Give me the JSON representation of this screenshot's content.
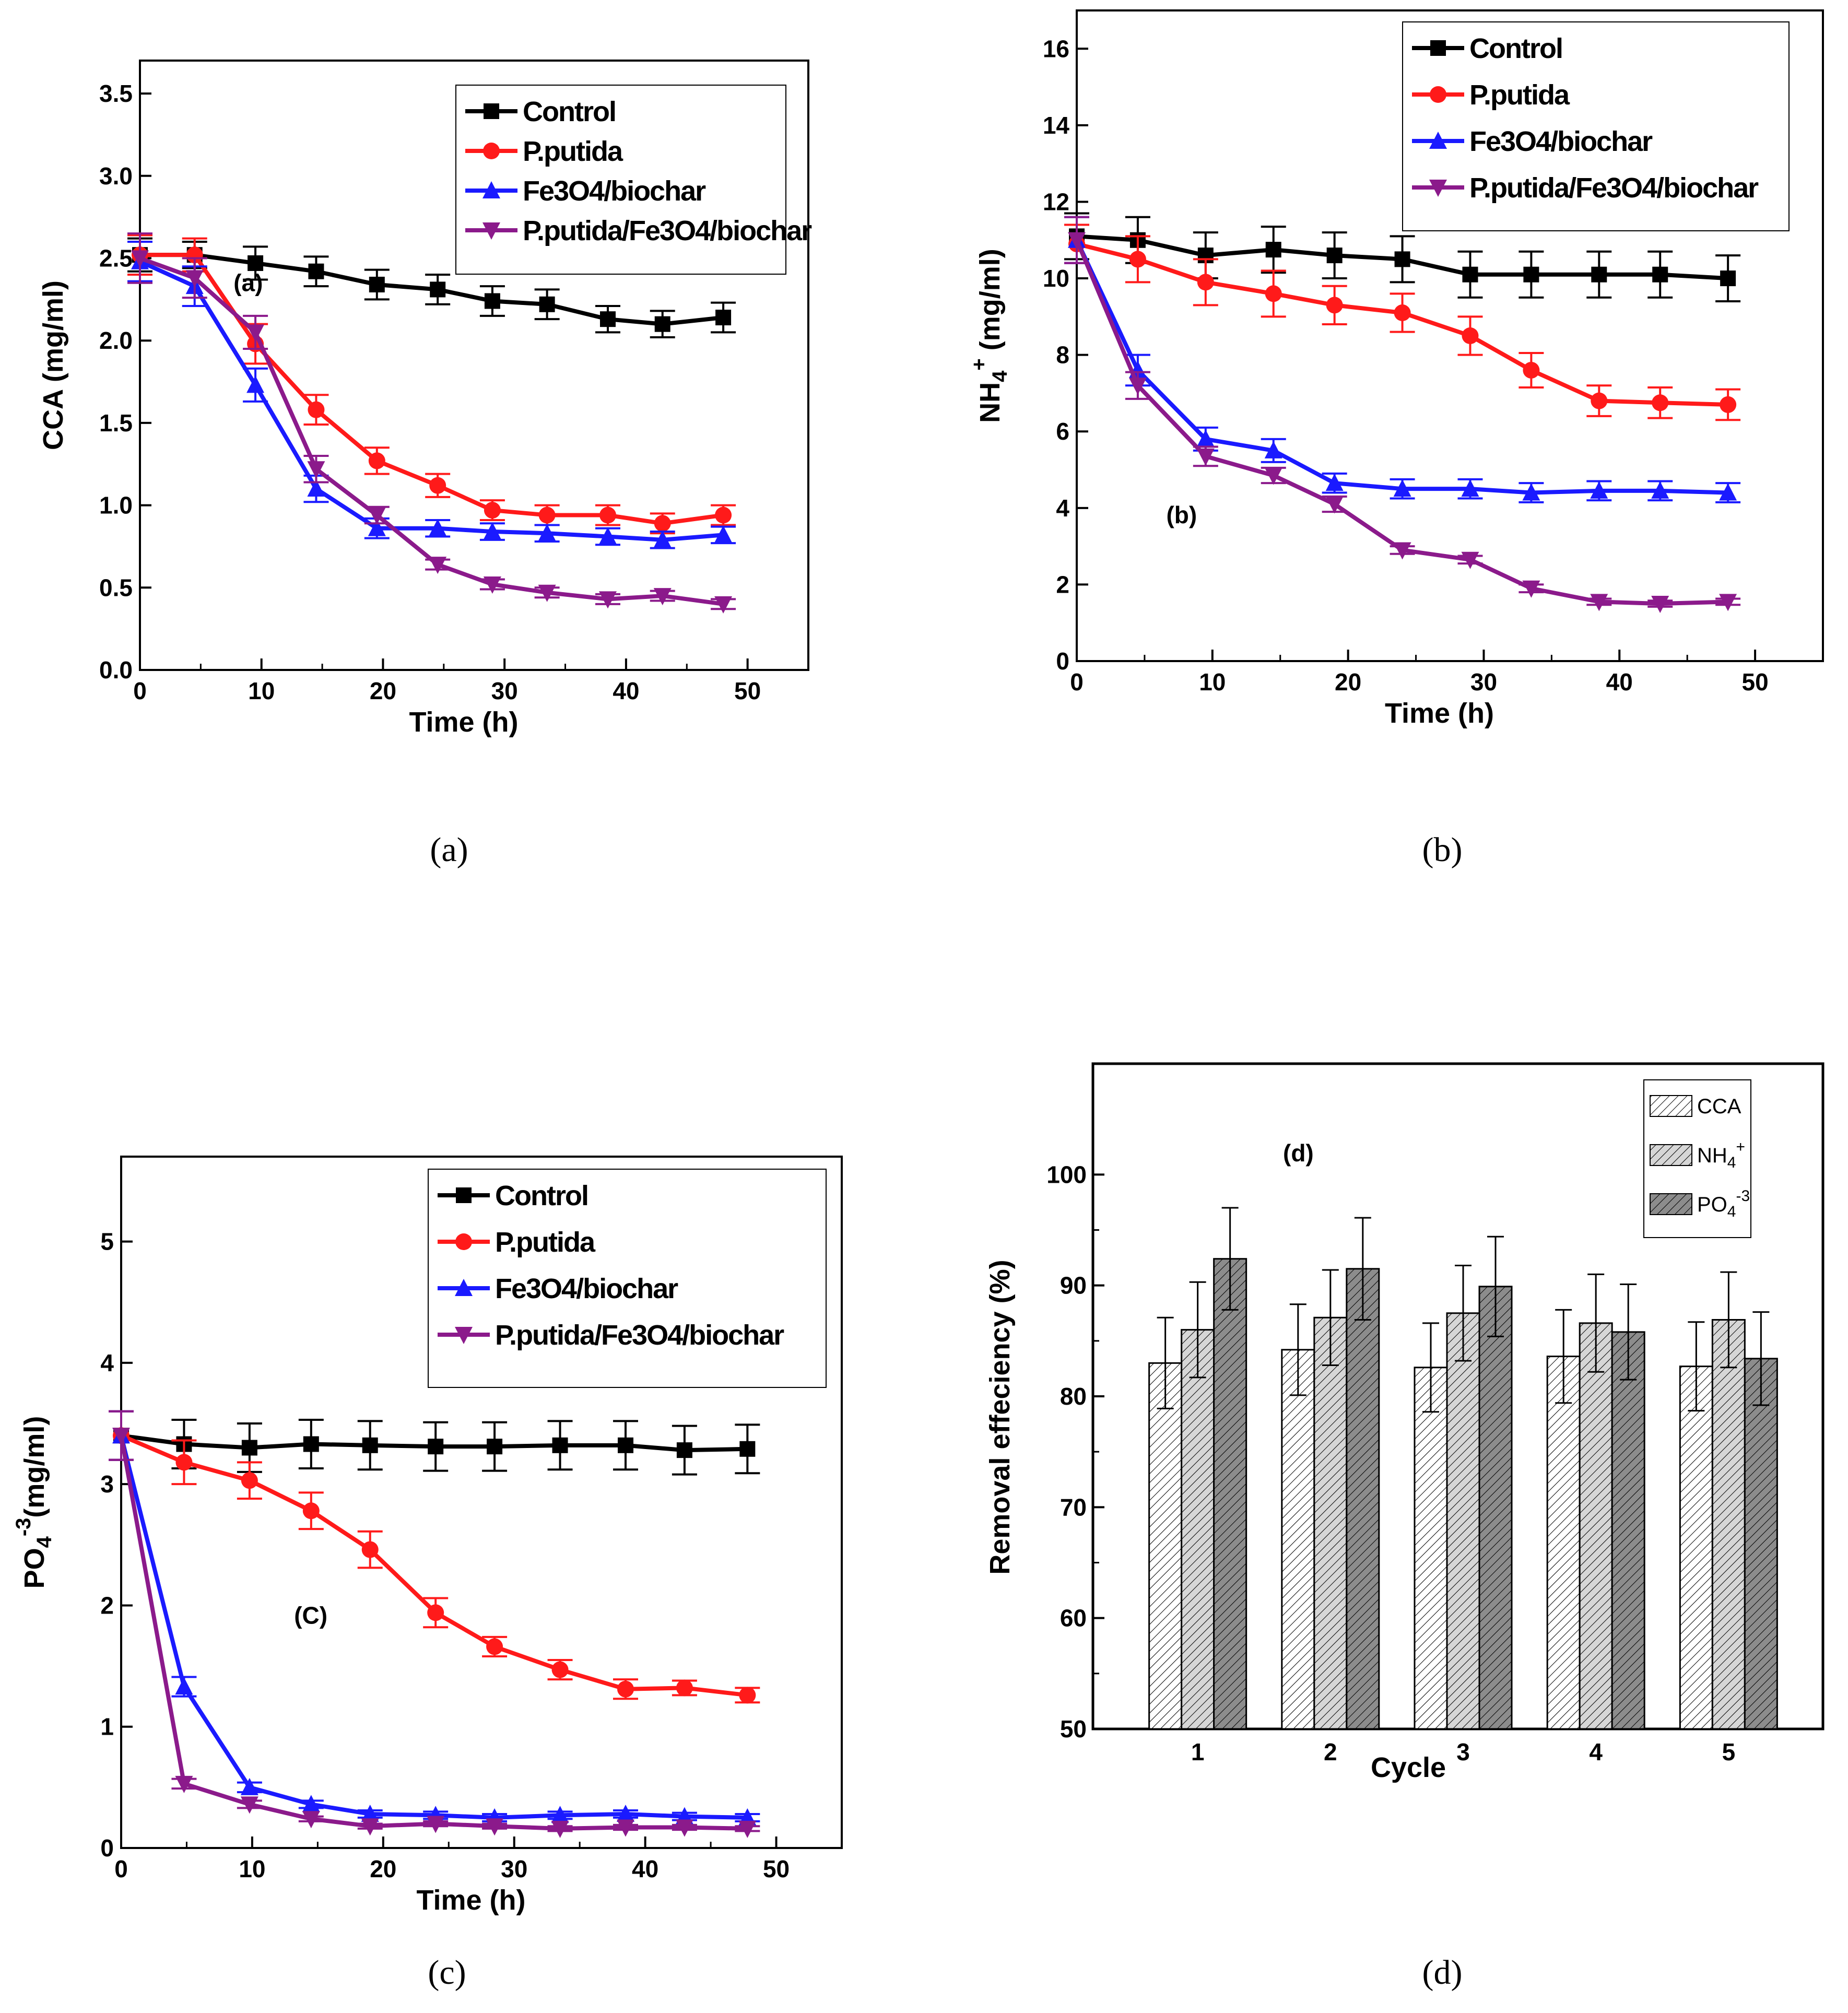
{
  "colors": {
    "Control": "#000000",
    "P.putida": "#ff1a1a",
    "Fe3O4/biochar": "#1a1aff",
    "P.putida/Fe3O4/biochar": "#8b1a8b",
    "CCA": "#ffffff",
    "NH4+": "#d6d6d6",
    "PO4-3": "#8c8c8c"
  },
  "chart_data": [
    {
      "id": "a",
      "type": "line",
      "caption": "(a)",
      "annotation": "(a)",
      "xlabel": "Time (h)",
      "ylabel": "CCA (mg/ml)",
      "xlim": [
        0,
        55
      ],
      "ylim": [
        0,
        3.7
      ],
      "xticks": [
        0,
        10,
        20,
        30,
        40,
        50
      ],
      "yticks": [
        0.0,
        0.5,
        1.0,
        1.5,
        2.0,
        2.5,
        3.0,
        3.5
      ],
      "ytick_labels": [
        "0.0",
        "0.5",
        "1.0",
        "1.5",
        "2.0",
        "2.5",
        "3.0",
        "3.5"
      ],
      "legend_position": "top-right",
      "x": [
        0,
        4.5,
        9.5,
        14.5,
        19.5,
        24.5,
        29,
        33.5,
        38.5,
        43,
        48
      ],
      "series": [
        {
          "name": "Control",
          "marker": "square",
          "values": [
            2.52,
            2.52,
            2.47,
            2.42,
            2.34,
            2.31,
            2.24,
            2.22,
            2.13,
            2.1,
            2.14
          ],
          "errors": [
            0.1,
            0.08,
            0.1,
            0.09,
            0.09,
            0.09,
            0.09,
            0.09,
            0.08,
            0.08,
            0.09
          ]
        },
        {
          "name": "P.putida",
          "marker": "circle",
          "values": [
            2.52,
            2.52,
            1.98,
            1.58,
            1.27,
            1.12,
            0.97,
            0.94,
            0.94,
            0.89,
            0.94
          ],
          "errors": [
            0.12,
            0.1,
            0.12,
            0.09,
            0.08,
            0.07,
            0.06,
            0.06,
            0.06,
            0.06,
            0.06
          ]
        },
        {
          "name": "Fe3O4/biochar",
          "marker": "triangle-up",
          "values": [
            2.48,
            2.33,
            1.73,
            1.1,
            0.86,
            0.86,
            0.84,
            0.83,
            0.81,
            0.79,
            0.82
          ],
          "errors": [
            0.12,
            0.12,
            0.1,
            0.08,
            0.06,
            0.05,
            0.05,
            0.05,
            0.05,
            0.05,
            0.05
          ]
        },
        {
          "name": "P.putida/Fe3O4/biochar",
          "marker": "triangle-down",
          "values": [
            2.5,
            2.38,
            2.05,
            1.22,
            0.94,
            0.64,
            0.52,
            0.47,
            0.43,
            0.45,
            0.4
          ],
          "errors": [
            0.15,
            0.12,
            0.1,
            0.08,
            0.05,
            0.03,
            0.03,
            0.03,
            0.03,
            0.03,
            0.03
          ]
        }
      ]
    },
    {
      "id": "b",
      "type": "line",
      "caption": "(b)",
      "annotation": "(b)",
      "xlabel": "Time (h)",
      "ylabel_main": "NH",
      "ylabel_sub": "4",
      "ylabel_sup": "+",
      "ylabel_rest": " (mg/ml)",
      "xlim": [
        0,
        55
      ],
      "ylim": [
        0,
        17
      ],
      "xticks": [
        0,
        10,
        20,
        30,
        40,
        50
      ],
      "yticks": [
        0,
        2,
        4,
        6,
        8,
        10,
        12,
        14,
        16
      ],
      "ytick_labels": [
        "0",
        "2",
        "4",
        "6",
        "8",
        "10",
        "12",
        "14",
        "16"
      ],
      "legend_position": "top-right",
      "x": [
        0,
        4.5,
        9.5,
        14.5,
        19,
        24,
        29,
        33.5,
        38.5,
        43,
        48
      ],
      "series": [
        {
          "name": "Control",
          "marker": "square",
          "values": [
            11.1,
            11.0,
            10.6,
            10.75,
            10.6,
            10.5,
            10.1,
            10.1,
            10.1,
            10.1,
            10.0
          ],
          "errors": [
            0.6,
            0.6,
            0.6,
            0.6,
            0.6,
            0.6,
            0.6,
            0.6,
            0.6,
            0.6,
            0.6
          ]
        },
        {
          "name": "P.putida",
          "marker": "circle",
          "values": [
            10.9,
            10.5,
            9.9,
            9.6,
            9.3,
            9.1,
            8.5,
            7.6,
            6.8,
            6.75,
            6.7
          ],
          "errors": [
            0.5,
            0.6,
            0.6,
            0.6,
            0.5,
            0.5,
            0.5,
            0.45,
            0.4,
            0.4,
            0.4
          ]
        },
        {
          "name": "Fe3O4/biochar",
          "marker": "triangle-up",
          "values": [
            11.0,
            7.6,
            5.8,
            5.5,
            4.65,
            4.5,
            4.5,
            4.4,
            4.45,
            4.45,
            4.4
          ],
          "errors": [
            0.6,
            0.4,
            0.3,
            0.3,
            0.25,
            0.25,
            0.25,
            0.25,
            0.25,
            0.25,
            0.25
          ]
        },
        {
          "name": "P.putida/Fe3O4/biochar",
          "marker": "triangle-down",
          "values": [
            11.0,
            7.2,
            5.35,
            4.85,
            4.1,
            2.9,
            2.65,
            1.9,
            1.55,
            1.5,
            1.55
          ],
          "errors": [
            0.6,
            0.35,
            0.25,
            0.2,
            0.2,
            0.1,
            0.1,
            0.1,
            0.08,
            0.08,
            0.08
          ]
        }
      ]
    },
    {
      "id": "c",
      "type": "line",
      "caption": "(c)",
      "annotation": "(C)",
      "xlabel": "Time (h)",
      "ylabel_main": "PO",
      "ylabel_sub": "4",
      "ylabel_sup": "-3",
      "ylabel_rest": "(mg/ml)",
      "xlim": [
        0,
        55
      ],
      "ylim": [
        0,
        5.7
      ],
      "xticks": [
        0,
        10,
        20,
        30,
        40,
        50
      ],
      "yticks": [
        0,
        1,
        2,
        3,
        4,
        5
      ],
      "ytick_labels": [
        "0",
        "1",
        "2",
        "3",
        "4",
        "5"
      ],
      "legend_position": "top-right",
      "x": [
        0,
        4.8,
        9.8,
        14.5,
        19,
        24,
        28.5,
        33.5,
        38.5,
        43,
        47.8
      ],
      "series": [
        {
          "name": "Control",
          "marker": "square",
          "values": [
            3.4,
            3.33,
            3.3,
            3.33,
            3.32,
            3.31,
            3.31,
            3.32,
            3.32,
            3.28,
            3.29
          ],
          "errors": [
            0.2,
            0.2,
            0.2,
            0.2,
            0.2,
            0.2,
            0.2,
            0.2,
            0.2,
            0.2,
            0.2
          ]
        },
        {
          "name": "P.putida",
          "marker": "circle",
          "values": [
            3.4,
            3.18,
            3.03,
            2.78,
            2.46,
            1.94,
            1.66,
            1.47,
            1.31,
            1.32,
            1.26
          ],
          "errors": [
            0.2,
            0.18,
            0.15,
            0.15,
            0.15,
            0.12,
            0.08,
            0.08,
            0.08,
            0.06,
            0.06
          ]
        },
        {
          "name": "Fe3O4/biochar",
          "marker": "triangle-up",
          "values": [
            3.4,
            1.33,
            0.5,
            0.36,
            0.28,
            0.27,
            0.25,
            0.27,
            0.28,
            0.26,
            0.25
          ],
          "errors": [
            0.2,
            0.08,
            0.04,
            0.03,
            0.03,
            0.03,
            0.03,
            0.03,
            0.03,
            0.03,
            0.03
          ]
        },
        {
          "name": "P.putida/Fe3O4/biochar",
          "marker": "triangle-down",
          "values": [
            3.4,
            0.53,
            0.36,
            0.24,
            0.18,
            0.2,
            0.18,
            0.16,
            0.17,
            0.17,
            0.16
          ],
          "errors": [
            0.2,
            0.04,
            0.03,
            0.02,
            0.02,
            0.02,
            0.02,
            0.02,
            0.02,
            0.02,
            0.02
          ]
        }
      ]
    },
    {
      "id": "d",
      "type": "bar",
      "caption": "(d)",
      "annotation": "(d)",
      "xlabel": "Cycle",
      "ylabel": "Removal effeciency (%)",
      "ylim": [
        50,
        110
      ],
      "yticks": [
        50,
        60,
        70,
        80,
        90,
        100
      ],
      "ytick_labels": [
        "50",
        "60",
        "70",
        "80",
        "90",
        "100"
      ],
      "categories": [
        "1",
        "2",
        "3",
        "4",
        "5"
      ],
      "legend_position": "top-right",
      "series": [
        {
          "name": "CCA",
          "legend_main": "CCA",
          "legend_sub": "",
          "legend_sup": "",
          "values": [
            83.0,
            84.2,
            82.6,
            83.6,
            82.7
          ],
          "errors": [
            4.1,
            4.1,
            4.0,
            4.2,
            4.0
          ]
        },
        {
          "name": "NH4+",
          "legend_main": "NH",
          "legend_sub": "4",
          "legend_sup": "+",
          "values": [
            86.0,
            87.1,
            87.5,
            86.6,
            86.9
          ],
          "errors": [
            4.3,
            4.3,
            4.3,
            4.4,
            4.3
          ]
        },
        {
          "name": "PO4-3",
          "legend_main": "PO",
          "legend_sub": "4",
          "legend_sup": "-3",
          "values": [
            92.4,
            91.5,
            89.9,
            85.8,
            83.4
          ],
          "errors": [
            4.6,
            4.6,
            4.5,
            4.3,
            4.2
          ]
        }
      ]
    }
  ]
}
